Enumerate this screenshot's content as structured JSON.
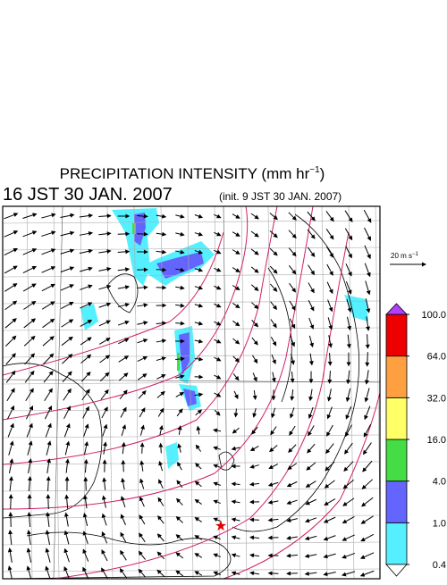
{
  "header": {
    "title": "PRECIPITATION INTENSITY (mm hr",
    "title_exponent": "−1",
    "title_close": ")",
    "valid_time": "16 JST 30 JAN. 2007",
    "init_time": "(init. 9 JST 30 JAN. 2007)"
  },
  "reference_vector": {
    "label": "20 m s",
    "label_exponent": "−1"
  },
  "colorbar": {
    "levels": [
      {
        "value": 0.4,
        "label": "0.4"
      },
      {
        "value": 1,
        "label": "1.0"
      },
      {
        "value": 4,
        "label": "4.0"
      },
      {
        "value": 16,
        "label": "16.0"
      },
      {
        "value": 32,
        "label": "32.0"
      },
      {
        "value": 64,
        "label": "64.0"
      },
      {
        "value": 100,
        "label": "100.0"
      }
    ],
    "colors": [
      "#55f0ff",
      "#6464ff",
      "#44dd44",
      "#ffff66",
      "#ffa040",
      "#ee0000"
    ],
    "over_color": "#b040ff",
    "under_color": "#ffffff"
  }
}
